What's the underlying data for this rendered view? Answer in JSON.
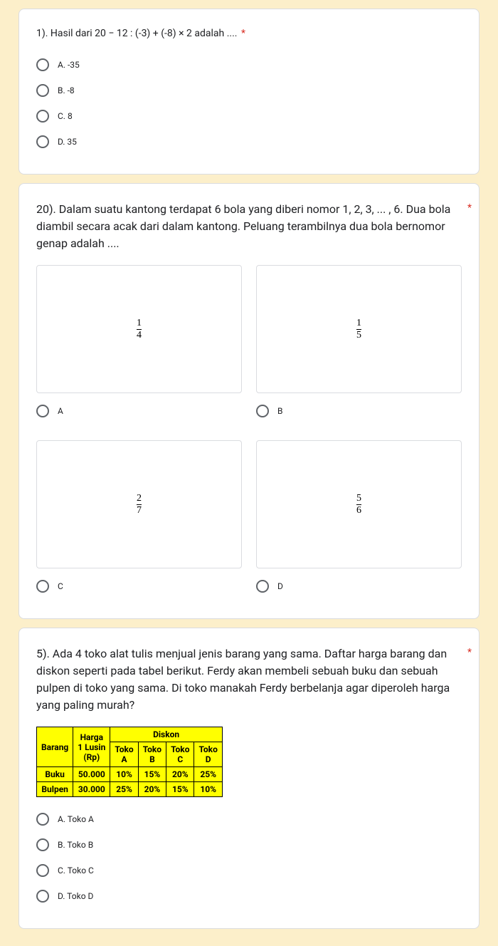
{
  "q1": {
    "title": "1). Hasil dari 20 − 12 : (-3) + (-8) × 2 adalah ....",
    "required": "*",
    "options": [
      "A. -35",
      "B. -8",
      "C. 8",
      "D. 35"
    ]
  },
  "q2": {
    "title": "20). Dalam suatu kantong terdapat 6 bola yang diberi nomor 1, 2, 3, ... , 6. Dua bola diambil secara acak dari dalam kantong. Peluang terambilnya dua bola bernomor genap adalah ....",
    "required": "*",
    "fracs": {
      "a": {
        "num": "1",
        "den": "4"
      },
      "b": {
        "num": "1",
        "den": "5"
      },
      "c": {
        "num": "2",
        "den": "7"
      },
      "d": {
        "num": "5",
        "den": "6"
      }
    },
    "labels": {
      "a": "A",
      "b": "B",
      "c": "C",
      "d": "D"
    }
  },
  "q3": {
    "title": "5). Ada 4 toko alat tulis menjual jenis barang yang sama. Daftar harga barang dan diskon seperti pada tabel berikut. Ferdy akan membeli sebuah buku dan sebuah pulpen di toko yang sama. Di toko manakah Ferdy berbelanja agar diperoleh harga yang paling murah?",
    "required": "*",
    "table": {
      "h_barang": "Barang",
      "h_harga": "Harga 1 Lusin (Rp)",
      "h_harga_l1": "Harga",
      "h_harga_l2": "1 Lusin",
      "h_harga_l3": "(Rp)",
      "h_diskon": "Diskon",
      "cols": [
        "Toko A",
        "Toko B",
        "Toko C",
        "Toko D"
      ],
      "col_l1": {
        "a": "Toko",
        "b": "Toko",
        "c": "Toko",
        "d": "Toko"
      },
      "col_l2": {
        "a": "A",
        "b": "B",
        "c": "C",
        "d": "D"
      },
      "rows": {
        "r1": {
          "name": "Buku",
          "price": "50.000",
          "a": "10%",
          "b": "15%",
          "c": "20%",
          "d": "25%"
        },
        "r2": {
          "name": "Bulpen",
          "price": "30.000",
          "a": "25%",
          "b": "20%",
          "c": "15%",
          "d": "10%"
        }
      }
    },
    "options": [
      "A. Toko A",
      "B. Toko B",
      "C. Toko C",
      "D. Toko D"
    ]
  }
}
